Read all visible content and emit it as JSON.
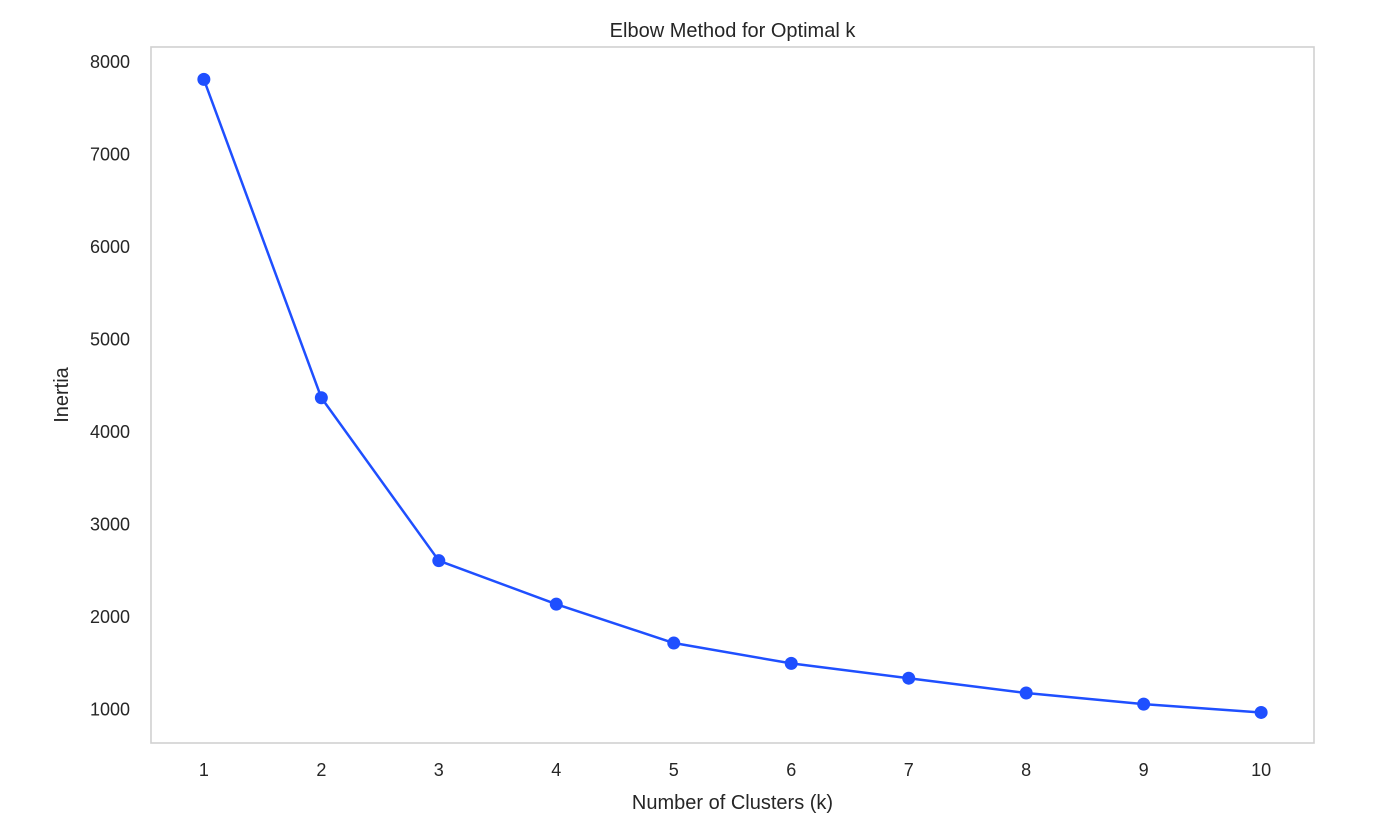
{
  "chart_data": {
    "type": "line",
    "title": "Elbow Method for Optimal k",
    "xlabel": "Number of Clusters (k)",
    "ylabel": "Inertia",
    "x": [
      1,
      2,
      3,
      4,
      5,
      6,
      7,
      8,
      9,
      10
    ],
    "x_ticks": [
      1,
      2,
      3,
      4,
      5,
      6,
      7,
      8,
      9,
      10
    ],
    "y_ticks": [
      1000,
      2000,
      3000,
      4000,
      5000,
      6000,
      7000,
      8000
    ],
    "series": [
      {
        "values": [
          7810,
          4370,
          2610,
          2140,
          1720,
          1500,
          1340,
          1180,
          1060,
          970
        ],
        "color": "#1f4fff",
        "marker": "circle"
      }
    ],
    "xlim": [
      0.55,
      10.45
    ],
    "ylim": [
      640,
      8160
    ],
    "grid": false,
    "frame_color": "#d0d0d0"
  }
}
